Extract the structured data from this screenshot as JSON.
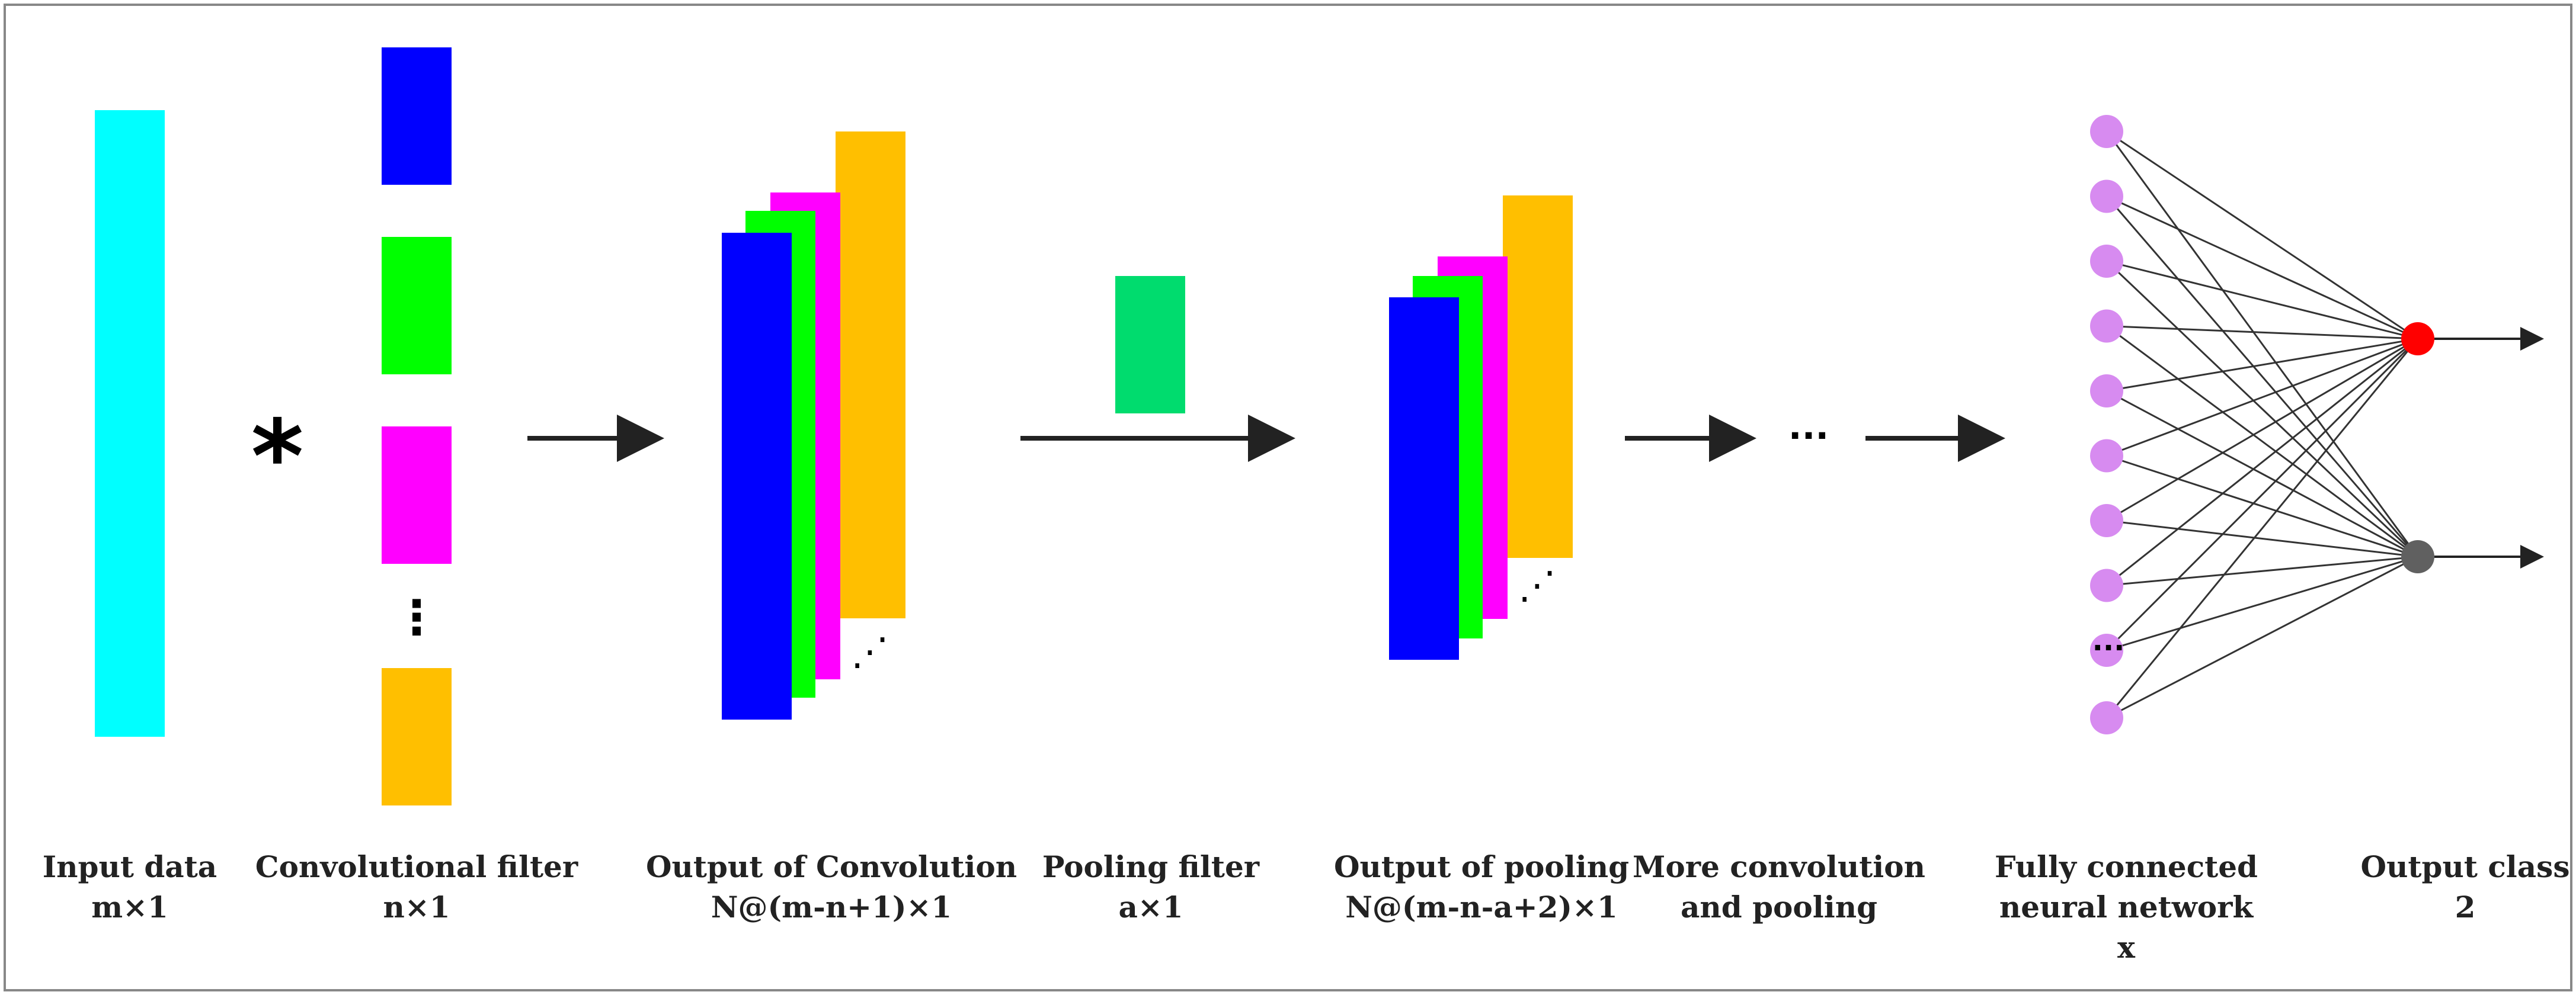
{
  "colors": {
    "input": "#00FFFF",
    "filter_blue": "#0000FF",
    "filter_green": "#00FF00",
    "filter_magenta": "#FF00FF",
    "filter_orange": "#FFBF00",
    "pool_filter": "#00DC6E",
    "node": "#D78BF0",
    "output_red": "#FF0000",
    "output_gray": "#606060",
    "arrow": "#222222",
    "frame": "#888888"
  },
  "symbols": {
    "convolution_operator": "*",
    "ellipsis_vertical": "⋮",
    "ellipsis_diagonal": "⋰",
    "ellipsis_horizontal": "···"
  },
  "captions": [
    {
      "id": "input",
      "line1": "Input data",
      "line2": "m×1"
    },
    {
      "id": "conv-filter",
      "line1": "Convolutional filter",
      "line2": "n×1"
    },
    {
      "id": "conv-output",
      "line1": "Output of Convolution",
      "line2": "N@(m-n+1)×1"
    },
    {
      "id": "pool-filter",
      "line1": "Pooling filter",
      "line2": "a×1"
    },
    {
      "id": "pool-output",
      "line1": "Output of pooling",
      "line2": "N@(m-n-a+2)×1"
    },
    {
      "id": "more",
      "line1": "More convolution",
      "line2": "and pooling"
    },
    {
      "id": "fc",
      "line1": "Fully connected",
      "line2": "neural network",
      "line3": "x"
    },
    {
      "id": "output-class",
      "line1": "Output class",
      "line2": "2"
    }
  ],
  "network": {
    "input_nodes_visible": 9,
    "output_nodes": 2
  }
}
